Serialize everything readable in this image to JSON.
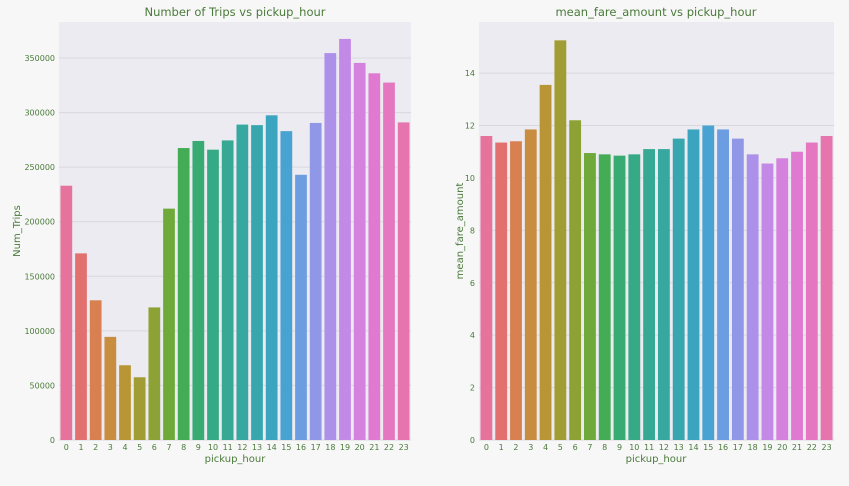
{
  "chart_data": [
    {
      "type": "bar",
      "title": "Number of Trips vs pickup_hour",
      "xlabel": "pickup_hour",
      "ylabel": "Num_Trips",
      "categories": [
        "0",
        "1",
        "2",
        "3",
        "4",
        "5",
        "6",
        "7",
        "8",
        "9",
        "10",
        "11",
        "12",
        "13",
        "14",
        "15",
        "16",
        "17",
        "18",
        "19",
        "20",
        "21",
        "22",
        "23"
      ],
      "values": [
        233000,
        171000,
        128000,
        94500,
        68500,
        57500,
        121500,
        212000,
        267500,
        274000,
        266000,
        274500,
        289000,
        288500,
        297500,
        283000,
        243000,
        290500,
        354500,
        367500,
        345500,
        336000,
        327500,
        291000
      ],
      "ylim": [
        0,
        383000
      ],
      "yticks": [
        0,
        50000,
        100000,
        150000,
        200000,
        250000,
        300000,
        350000
      ],
      "ytick_labels": [
        "0",
        "50000",
        "100000",
        "150000",
        "200000",
        "250000",
        "300000",
        "350000"
      ],
      "grid": "y"
    },
    {
      "type": "bar",
      "title": "mean_fare_amount vs pickup_hour",
      "xlabel": "pickup_hour",
      "ylabel": "mean_fare_amount",
      "categories": [
        "0",
        "1",
        "2",
        "3",
        "4",
        "5",
        "6",
        "7",
        "8",
        "9",
        "10",
        "11",
        "12",
        "13",
        "14",
        "15",
        "16",
        "17",
        "18",
        "19",
        "20",
        "21",
        "22",
        "23"
      ],
      "values": [
        11.6,
        11.35,
        11.4,
        11.85,
        13.55,
        15.25,
        12.2,
        10.95,
        10.9,
        10.85,
        10.9,
        11.1,
        11.1,
        11.5,
        11.85,
        12.0,
        11.85,
        11.5,
        10.9,
        10.55,
        10.75,
        11.0,
        11.35,
        11.6
      ],
      "ylim": [
        0,
        15.95
      ],
      "yticks": [
        0,
        2,
        4,
        6,
        8,
        10,
        12,
        14
      ],
      "ytick_labels": [
        "0",
        "2",
        "4",
        "6",
        "8",
        "10",
        "12",
        "14"
      ],
      "grid": "y"
    }
  ],
  "colors": {
    "text": "#4a7a3a",
    "grid": "#d8d8de",
    "plot_bg": "#ebebf1",
    "palette": [
      "#e6739b",
      "#e2706f",
      "#d8804f",
      "#c98d3f",
      "#b99635",
      "#a29c35",
      "#8ca235",
      "#6ea93a",
      "#44ac55",
      "#37ab72",
      "#36a985",
      "#36a893",
      "#37a8a0",
      "#38a6ae",
      "#3ba5bf",
      "#48a3d2",
      "#6c9de0",
      "#9097e7",
      "#ad90e9",
      "#c289e6",
      "#d482dd",
      "#e07ad0",
      "#e477bf",
      "#e675ad"
    ]
  }
}
